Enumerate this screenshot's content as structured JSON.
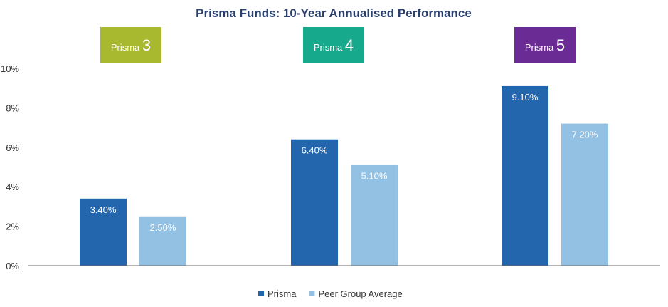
{
  "chart_data": {
    "type": "bar",
    "title": "Prisma Funds: 10-Year Annualised Performance",
    "xlabel": "",
    "ylabel": "",
    "ylim": [
      0,
      10
    ],
    "y_ticks": [
      "0%",
      "2%",
      "4%",
      "6%",
      "8%",
      "10%"
    ],
    "y_tick_values": [
      0,
      2,
      4,
      6,
      8,
      10
    ],
    "grid": false,
    "legend_position": "bottom",
    "groups": [
      {
        "prefix": "Prisma",
        "number": "3",
        "color": "#a9b92f"
      },
      {
        "prefix": "Prisma",
        "number": "4",
        "color": "#17a98b"
      },
      {
        "prefix": "Prisma",
        "number": "5",
        "color": "#6b2b94"
      }
    ],
    "series": [
      {
        "name": "Prisma",
        "color": "#2466ae",
        "values": [
          3.4,
          6.4,
          9.1
        ],
        "labels": [
          "3.40%",
          "6.40%",
          "9.10%"
        ]
      },
      {
        "name": "Peer Group Average",
        "color": "#92c1e4",
        "values": [
          2.5,
          5.1,
          7.2
        ],
        "labels": [
          "2.50%",
          "5.10%",
          "7.20%"
        ]
      }
    ]
  }
}
